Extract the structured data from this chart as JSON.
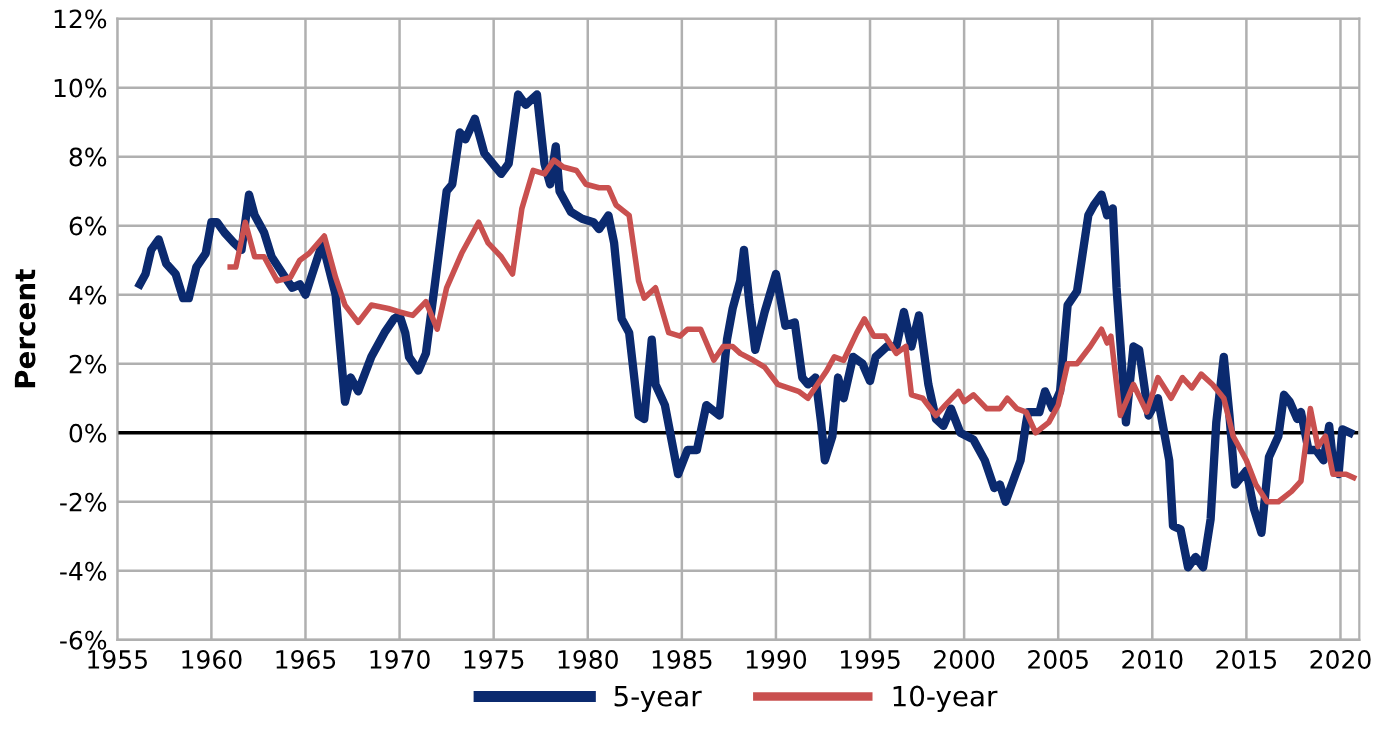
{
  "chart_data": {
    "type": "line",
    "ylabel": "Percent",
    "xlim": [
      1955,
      2021
    ],
    "xticks": [
      1955,
      1960,
      1965,
      1970,
      1975,
      1980,
      1985,
      1990,
      1995,
      2000,
      2005,
      2010,
      2015,
      2020
    ],
    "ylim": [
      -6,
      12
    ],
    "yticks": [
      {
        "value": -6,
        "label": "-6%"
      },
      {
        "value": -4,
        "label": "-4%"
      },
      {
        "value": -2,
        "label": "-2%"
      },
      {
        "value": 0,
        "label": "0%"
      },
      {
        "value": 2,
        "label": "2%"
      },
      {
        "value": 4,
        "label": "4%"
      },
      {
        "value": 6,
        "label": "6%"
      },
      {
        "value": 8,
        "label": "8%"
      },
      {
        "value": 10,
        "label": "10%"
      },
      {
        "value": 12,
        "label": "12%"
      }
    ],
    "grid": true,
    "legend": "bottom",
    "marker": "none",
    "line_style": "solid",
    "series": [
      {
        "name": "5-year",
        "color": "#0b2a6f",
        "x": [
          1956.2,
          1956.5,
          1956.8,
          1957.2,
          1957.6,
          1958.1,
          1958.5,
          1958.8,
          1959.2,
          1959.7,
          1960.0,
          1960.3,
          1960.7,
          1961.2,
          1961.6,
          1962.0,
          1962.3,
          1962.8,
          1963.2,
          1963.8,
          1964.3,
          1964.7,
          1965.0,
          1965.9,
          1966.6,
          1967.1,
          1967.4,
          1967.8,
          1968.5,
          1969.2,
          1969.7,
          1970.0,
          1970.3,
          1970.5,
          1971.0,
          1971.4,
          1971.9,
          1972.5,
          1972.8,
          1973.2,
          1973.5,
          1974.0,
          1974.5,
          1975.1,
          1975.4,
          1975.8,
          1976.3,
          1976.7,
          1977.3,
          1977.7,
          1978.0,
          1978.3,
          1978.5,
          1979.1,
          1979.7,
          1980.3,
          1980.6,
          1981.1,
          1981.4,
          1981.8,
          1982.2,
          1982.7,
          1983.0,
          1983.4,
          1983.6,
          1984.1,
          1984.8,
          1985.3,
          1985.8,
          1986.3,
          1987.0,
          1987.4,
          1987.7,
          1988.1,
          1988.3,
          1988.6,
          1988.9,
          1989.4,
          1990.0,
          1990.5,
          1991.0,
          1991.4,
          1991.7,
          1992.1,
          1992.4,
          1992.6,
          1993.0,
          1993.3,
          1993.6,
          1994.1,
          1994.6,
          1995.0,
          1995.3,
          1995.9,
          1996.4,
          1996.8,
          1997.2,
          1997.6,
          1998.1,
          1998.5,
          1998.9,
          1999.3,
          1999.8,
          2000.5,
          2001.1,
          2001.6,
          2001.9,
          2002.2,
          2002.6,
          2003.0,
          2003.3,
          2003.4,
          2004.0,
          2004.3,
          2004.7,
          2005.1,
          2005.5,
          2006.0,
          2006.6,
          2006.9,
          2007.3,
          2007.6,
          2007.9,
          2008.1,
          2008.6,
          2009.0,
          2009.3,
          2009.8,
          2010.3,
          2010.9,
          2011.1,
          2011.5,
          2011.9,
          2012.3,
          2012.7,
          2013.1,
          2013.4,
          2013.8,
          2014.1,
          2014.4,
          2015.0,
          2015.4,
          2015.8,
          2016.2,
          2016.7,
          2017.0,
          2017.3,
          2017.7,
          2017.9,
          2018.3,
          2018.7,
          2019.1,
          2019.4,
          2019.6,
          2019.9,
          2020.1,
          2020.5
        ],
        "values": [
          4.3,
          4.6,
          5.3,
          5.6,
          4.9,
          4.6,
          3.9,
          3.9,
          4.8,
          5.2,
          6.1,
          6.1,
          5.8,
          5.5,
          5.3,
          6.9,
          6.3,
          5.8,
          5.1,
          4.6,
          4.2,
          4.3,
          4.0,
          5.5,
          4.0,
          0.9,
          1.6,
          1.2,
          2.2,
          2.9,
          3.3,
          3.4,
          2.9,
          2.2,
          1.8,
          2.3,
          4.4,
          7.0,
          7.2,
          8.7,
          8.5,
          9.1,
          8.1,
          7.7,
          7.5,
          7.8,
          9.8,
          9.5,
          9.8,
          7.8,
          7.2,
          8.3,
          7.0,
          6.4,
          6.2,
          6.1,
          5.9,
          6.3,
          5.5,
          3.3,
          2.9,
          0.5,
          0.4,
          2.7,
          1.4,
          0.8,
          -1.2,
          -0.5,
          -0.5,
          0.8,
          0.5,
          2.7,
          3.6,
          4.4,
          5.3,
          3.7,
          2.4,
          3.5,
          4.6,
          3.1,
          3.2,
          1.6,
          1.4,
          1.6,
          0.3,
          -0.8,
          -0.1,
          1.6,
          1.0,
          2.2,
          2.0,
          1.5,
          2.2,
          2.5,
          2.5,
          3.5,
          2.5,
          3.4,
          1.4,
          0.4,
          0.2,
          0.7,
          0.0,
          -0.2,
          -0.8,
          -1.6,
          -1.5,
          -2.0,
          -1.4,
          -0.8,
          0.3,
          0.6,
          0.6,
          1.2,
          0.7,
          1.2,
          3.7,
          4.1,
          6.3,
          6.6,
          6.9,
          6.3,
          6.5,
          4.2,
          0.3,
          2.5,
          2.4,
          0.5,
          1.0,
          -0.8,
          -2.7,
          -2.8,
          -3.9,
          -3.6,
          -3.9,
          -2.5,
          0.3,
          2.2,
          0.5,
          -1.5,
          -1.1,
          -2.2,
          -2.9,
          -0.7,
          -0.1,
          1.1,
          0.9,
          0.4,
          0.6,
          -0.5,
          -0.5,
          -0.8,
          0.2,
          -0.8,
          -1.2,
          0.1,
          0.0
        ]
      },
      {
        "name": "10-year",
        "color": "#c9504f",
        "x": [
          1961.0,
          1961.3,
          1961.8,
          1962.3,
          1962.8,
          1963.5,
          1964.2,
          1964.7,
          1965.2,
          1966.0,
          1966.6,
          1967.1,
          1967.8,
          1968.5,
          1969.4,
          1970.0,
          1970.7,
          1971.4,
          1972.0,
          1972.5,
          1973.3,
          1974.2,
          1974.7,
          1975.4,
          1976.0,
          1976.5,
          1977.1,
          1977.7,
          1978.2,
          1978.7,
          1979.4,
          1979.9,
          1980.6,
          1981.1,
          1981.5,
          1982.2,
          1982.7,
          1983.0,
          1983.6,
          1984.3,
          1984.9,
          1985.3,
          1986.0,
          1986.7,
          1987.2,
          1987.7,
          1988.1,
          1988.8,
          1989.4,
          1990.1,
          1991.2,
          1991.7,
          1992.2,
          1992.7,
          1993.1,
          1993.6,
          1994.3,
          1994.7,
          1995.2,
          1995.8,
          1996.4,
          1996.9,
          1997.2,
          1997.8,
          1998.5,
          1999.0,
          1999.7,
          2000.0,
          2000.5,
          2001.2,
          2001.9,
          2002.3,
          2002.8,
          2003.3,
          2003.8,
          2004.5,
          2005.0,
          2005.5,
          2006.0,
          2006.7,
          2007.3,
          2007.6,
          2007.8,
          2008.3,
          2009.0,
          2009.7,
          2010.3,
          2011.0,
          2011.6,
          2012.1,
          2012.6,
          2013.2,
          2013.8,
          2014.3,
          2015.0,
          2015.5,
          2016.1,
          2016.7,
          2017.4,
          2017.9,
          2018.4,
          2018.8,
          2019.2,
          2019.6,
          2020.3,
          2020.7
        ],
        "values": [
          4.8,
          4.8,
          6.1,
          5.1,
          5.1,
          4.4,
          4.5,
          5.0,
          5.2,
          5.7,
          4.5,
          3.7,
          3.2,
          3.7,
          3.6,
          3.5,
          3.4,
          3.8,
          3.0,
          4.2,
          5.2,
          6.1,
          5.5,
          5.1,
          4.6,
          6.5,
          7.6,
          7.5,
          7.9,
          7.7,
          7.6,
          7.2,
          7.1,
          7.1,
          6.6,
          6.3,
          4.4,
          3.9,
          4.2,
          2.9,
          2.8,
          3.0,
          3.0,
          2.1,
          2.5,
          2.5,
          2.3,
          2.1,
          1.9,
          1.4,
          1.2,
          1.0,
          1.4,
          1.8,
          2.2,
          2.1,
          2.9,
          3.3,
          2.8,
          2.8,
          2.3,
          2.5,
          1.1,
          1.0,
          0.5,
          0.8,
          1.2,
          0.9,
          1.1,
          0.7,
          0.7,
          1.0,
          0.7,
          0.6,
          0.0,
          0.3,
          0.8,
          2.0,
          2.0,
          2.5,
          3.0,
          2.6,
          2.8,
          0.5,
          1.4,
          0.6,
          1.6,
          1.0,
          1.6,
          1.3,
          1.7,
          1.4,
          1.0,
          -0.1,
          -0.8,
          -1.5,
          -2.0,
          -2.0,
          -1.7,
          -1.4,
          0.7,
          -0.4,
          -0.1,
          -1.2,
          -1.2,
          -1.3
        ]
      }
    ]
  }
}
